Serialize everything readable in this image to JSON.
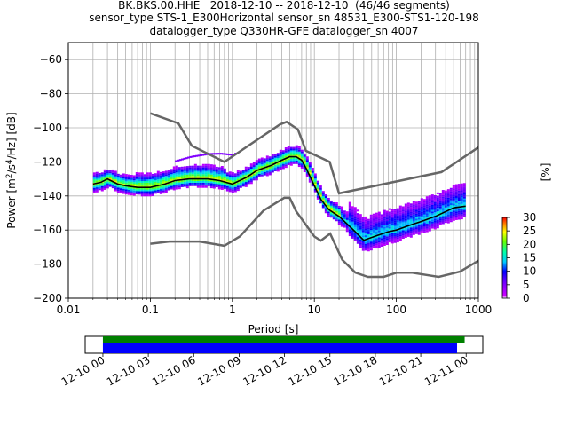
{
  "title": {
    "line1": "BK.BKS.00.HHE   2018-12-10 -- 2018-12-10  (46/46 segments)",
    "line2": "sensor_type STS-1_E300Horizontal sensor_sn 48531_E300-STS1-120-198",
    "line3": "datalogger_type Q330HR-GFE datalogger_sn 4007"
  },
  "chart_data": [
    {
      "type": "heatmap",
      "xlabel": "Period [s]",
      "ylabel": "Power [m²/s⁴/Hz] [dB]",
      "xscale": "log",
      "xlim": [
        0.01,
        1000
      ],
      "ylim": [
        -200,
        -50
      ],
      "xtick_labels": [
        "0.01",
        "0.1",
        "1",
        "10",
        "100",
        "1000"
      ],
      "xticks": [
        0.01,
        0.1,
        1,
        10,
        100,
        1000
      ],
      "yticks": [
        -60,
        -80,
        -100,
        -120,
        -140,
        -160,
        -180,
        -200
      ],
      "ytick_labels": [
        "−60",
        "−80",
        "−100",
        "−120",
        "−140",
        "−160",
        "−180",
        "−200"
      ],
      "grid": true,
      "noise_models": [
        {
          "name": "high-noise model",
          "color": "#666666",
          "x": [
            0.1,
            0.22,
            0.32,
            0.8,
            3.8,
            4.6,
            6.3,
            7.9,
            15.4,
            20,
            354.8,
            1000
          ],
          "y": [
            -91.5,
            -97.4,
            -110.5,
            -120,
            -98,
            -96.5,
            -101,
            -113.5,
            -120,
            -138.5,
            -126,
            -111.5
          ]
        },
        {
          "name": "low-noise model",
          "color": "#666666",
          "x": [
            0.1,
            0.17,
            0.4,
            0.8,
            1.24,
            2.4,
            4.3,
            5,
            6,
            10,
            12,
            15.6,
            21.9,
            31.6,
            45,
            70,
            101,
            154,
            328,
            600,
            1000
          ],
          "y": [
            -168,
            -166.7,
            -166.7,
            -169.2,
            -163.7,
            -148.6,
            -141.1,
            -141.1,
            -149,
            -163.8,
            -166.2,
            -162.1,
            -177.5,
            -185,
            -187.5,
            -187.5,
            -185,
            -185,
            -187.5,
            -184.4,
            -178
          ]
        }
      ],
      "mode_curve": {
        "name": "mode",
        "color": "#000000",
        "x": [
          0.02,
          0.025,
          0.03,
          0.04,
          0.05,
          0.07,
          0.1,
          0.15,
          0.2,
          0.3,
          0.5,
          0.7,
          1,
          1.5,
          2,
          3,
          4,
          5,
          6,
          7,
          8,
          10,
          12,
          15,
          20,
          30,
          40,
          60,
          80,
          100,
          150,
          200,
          300,
          500,
          700
        ],
        "y": [
          -133,
          -132,
          -130,
          -133,
          -134,
          -135,
          -135,
          -133,
          -131,
          -130,
          -130,
          -131,
          -133,
          -129,
          -125,
          -122,
          -119,
          -117,
          -117,
          -119,
          -124,
          -134,
          -142,
          -148,
          -152,
          -160,
          -166,
          -163,
          -161,
          -160,
          -157,
          -155,
          -152,
          -147,
          -146
        ]
      },
      "colorbar": {
        "label": "[%]",
        "range": [
          0,
          30
        ],
        "ticks": [
          0,
          5,
          10,
          15,
          20,
          25,
          30
        ]
      }
    },
    {
      "type": "bar",
      "xtick_labels": [
        "12-10 00",
        "12-10 03",
        "12-10 06",
        "12-10 09",
        "12-10 12",
        "12-10 15",
        "12-10 18",
        "12-10 21",
        "12-11 00"
      ],
      "xticks_hours": [
        0,
        3,
        6,
        9,
        12,
        15,
        18,
        21,
        24
      ],
      "xlim_hours": [
        -1.17,
        25.1
      ],
      "series": [
        {
          "color": "#008000",
          "start_hour": 0,
          "end_hour": 23.9
        },
        {
          "color": "#0000ff",
          "start_hour": 0,
          "end_hour": 23.4
        }
      ]
    }
  ]
}
